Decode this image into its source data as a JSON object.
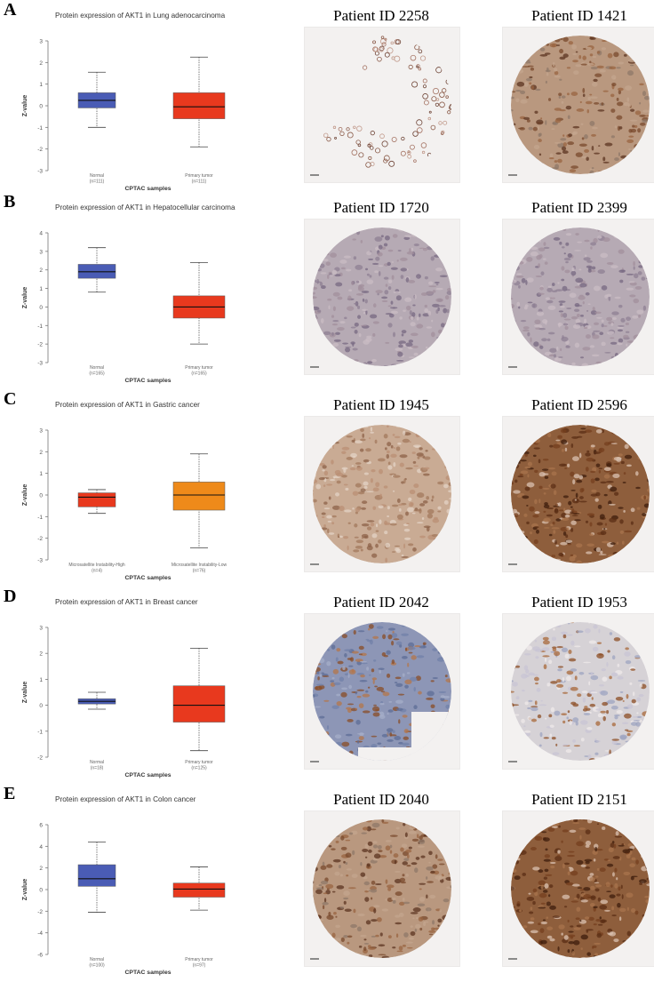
{
  "panels": [
    {
      "letter": "A",
      "images": [
        {
          "title": "Patient ID 2258",
          "stain": "low-brown",
          "shape": "fragmented"
        },
        {
          "title": "Patient ID 1421",
          "stain": "medium-brown",
          "shape": "circle"
        }
      ]
    },
    {
      "letter": "B",
      "images": [
        {
          "title": "Patient ID 1720",
          "stain": "low-purple",
          "shape": "circle"
        },
        {
          "title": "Patient ID 2399",
          "stain": "low-purple",
          "shape": "circle"
        }
      ]
    },
    {
      "letter": "C",
      "images": [
        {
          "title": "Patient ID 1945",
          "stain": "light-brown",
          "shape": "circle"
        },
        {
          "title": "Patient ID 2596",
          "stain": "high-brown",
          "shape": "circle"
        }
      ]
    },
    {
      "letter": "D",
      "images": [
        {
          "title": "Patient ID 2042",
          "stain": "blue-gray",
          "shape": "partial"
        },
        {
          "title": "Patient ID 1953",
          "stain": "mixed-brown",
          "shape": "circle"
        }
      ]
    },
    {
      "letter": "E",
      "images": [
        {
          "title": "Patient ID 2040",
          "stain": "medium-brown",
          "shape": "circle"
        },
        {
          "title": "Patient ID 2151",
          "stain": "high-brown",
          "shape": "circle"
        }
      ]
    }
  ],
  "chart_data": [
    {
      "type": "box",
      "title": "Protein expression of AKT1 in Lung adenocarcinoma",
      "xlabel": "CPTAC samples",
      "ylabel": "Z-value",
      "ylim": [
        -3,
        3
      ],
      "yticks": [
        3,
        2,
        1,
        0,
        -1,
        -2,
        -3
      ],
      "groups": [
        {
          "label": "Normal",
          "n": "(n=111)",
          "color": "#4a5cb5",
          "min": -1.0,
          "q1": -0.1,
          "median": 0.25,
          "q3": 0.6,
          "max": 1.55
        },
        {
          "label": "Primary tumor",
          "n": "(n=111)",
          "color": "#e8391e",
          "min": -1.9,
          "q1": -0.6,
          "median": -0.05,
          "q3": 0.6,
          "max": 2.25
        }
      ]
    },
    {
      "type": "box",
      "title": "Protein expression of AKT1 in Hepatocellular carcinoma",
      "xlabel": "CPTAC samples",
      "ylabel": "Z-value",
      "ylim": [
        -3,
        4
      ],
      "yticks": [
        4,
        3,
        2,
        1,
        0,
        -1,
        -2,
        -3
      ],
      "groups": [
        {
          "label": "Normal",
          "n": "(n=165)",
          "color": "#4a5cb5",
          "min": 0.8,
          "q1": 1.55,
          "median": 1.9,
          "q3": 2.3,
          "max": 3.2
        },
        {
          "label": "Primary tumor",
          "n": "(n=165)",
          "color": "#e8391e",
          "min": -2.0,
          "q1": -0.6,
          "median": 0.0,
          "q3": 0.6,
          "max": 2.4
        }
      ]
    },
    {
      "type": "box",
      "title": "Protein expression of AKT1 in Gastric cancer",
      "xlabel": "CPTAC samples",
      "ylabel": "Z-value",
      "ylim": [
        -3,
        3
      ],
      "yticks": [
        3,
        2,
        1,
        0,
        -1,
        -2,
        -3
      ],
      "groups": [
        {
          "label": "Microsatellite Instability-High",
          "n": "(n=4)",
          "color": "#e8391e",
          "min": -0.85,
          "q1": -0.55,
          "median": -0.1,
          "q3": 0.1,
          "max": 0.25
        },
        {
          "label": "Microsatellite Instability-Low",
          "n": "(n=76)",
          "color": "#ee8a1a",
          "min": -2.45,
          "q1": -0.7,
          "median": 0.0,
          "q3": 0.6,
          "max": 1.9
        }
      ]
    },
    {
      "type": "box",
      "title": "Protein expression of AKT1 in Breast cancer",
      "xlabel": "CPTAC samples",
      "ylabel": "Z-value",
      "ylim": [
        -2,
        3
      ],
      "yticks": [
        3,
        2,
        1,
        0,
        -1,
        -2
      ],
      "groups": [
        {
          "label": "Normal",
          "n": "(n=18)",
          "color": "#4a5cb5",
          "min": -0.15,
          "q1": 0.05,
          "median": 0.15,
          "q3": 0.25,
          "max": 0.5
        },
        {
          "label": "Primary tumor",
          "n": "(n=125)",
          "color": "#e8391e",
          "min": -1.75,
          "q1": -0.65,
          "median": 0.0,
          "q3": 0.75,
          "max": 2.2
        }
      ]
    },
    {
      "type": "box",
      "title": "Protein expression of AKT1 in Colon cancer",
      "xlabel": "CPTAC samples",
      "ylabel": "Z-value",
      "ylim": [
        -6,
        6
      ],
      "yticks": [
        6,
        4,
        2,
        0,
        -2,
        -4,
        -6
      ],
      "groups": [
        {
          "label": "Normal",
          "n": "(n=100)",
          "color": "#4a5cb5",
          "min": -2.1,
          "q1": 0.3,
          "median": 1.0,
          "q3": 2.3,
          "max": 4.4
        },
        {
          "label": "Primary tumor",
          "n": "(n=97)",
          "color": "#e8391e",
          "min": -1.9,
          "q1": -0.7,
          "median": 0.05,
          "q3": 0.6,
          "max": 2.1
        }
      ]
    }
  ]
}
